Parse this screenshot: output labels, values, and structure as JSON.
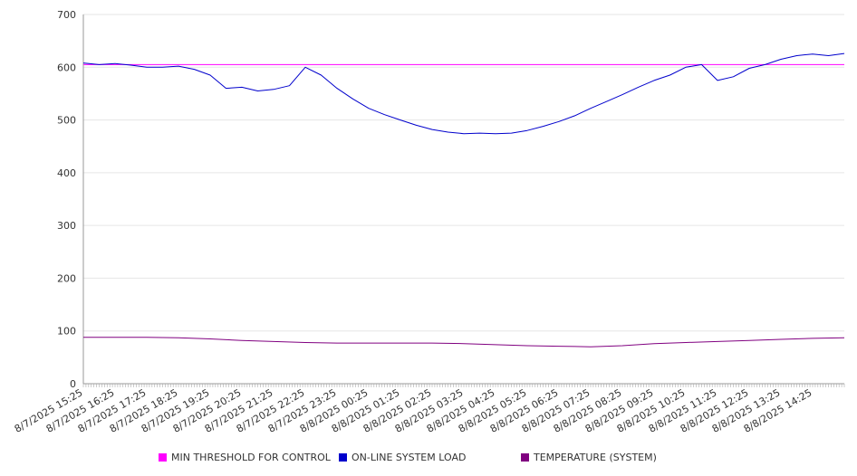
{
  "chart_data": {
    "type": "line",
    "ylim": [
      0,
      700
    ],
    "y_ticks": [
      0,
      100,
      200,
      300,
      400,
      500,
      600,
      700
    ],
    "y_tick_labels": [
      "0",
      "100",
      "200",
      "300",
      "400",
      "500",
      "600",
      "700"
    ],
    "x_range": [
      "8/7/2025 15:25",
      "8/8/2025 15:25"
    ],
    "x_tick_labels": [
      "8/7/2025 15:25",
      "8/7/2025 16:25",
      "8/7/2025 17:25",
      "8/7/2025 18:25",
      "8/7/2025 19:25",
      "8/7/2025 20:25",
      "8/7/2025 21:25",
      "8/7/2025 22:25",
      "8/7/2025 23:25",
      "8/8/2025 00:25",
      "8/8/2025 01:25",
      "8/8/2025 02:25",
      "8/8/2025 03:25",
      "8/8/2025 04:25",
      "8/8/2025 05:25",
      "8/8/2025 06:25",
      "8/8/2025 07:25",
      "8/8/2025 08:25",
      "8/8/2025 09:25",
      "8/8/2025 10:25",
      "8/8/2025 11:25",
      "8/8/2025 12:25",
      "8/8/2025 13:25",
      "8/8/2025 14:25"
    ],
    "grid": true,
    "legend_position": "bottom",
    "series": [
      {
        "name": "MIN THRESHOLD FOR CONTROL",
        "color": "#ff00ff",
        "x": [
          "8/7/2025 15:25",
          "8/8/2025 15:25"
        ],
        "values": [
          605,
          605
        ]
      },
      {
        "name": "ON-LINE SYSTEM LOAD",
        "color": "#0000cc",
        "x": [
          "8/7/2025 15:25",
          "8/7/2025 15:55",
          "8/7/2025 16:25",
          "8/7/2025 16:55",
          "8/7/2025 17:25",
          "8/7/2025 17:55",
          "8/7/2025 18:25",
          "8/7/2025 18:55",
          "8/7/2025 19:25",
          "8/7/2025 19:55",
          "8/7/2025 20:25",
          "8/7/2025 20:55",
          "8/7/2025 21:25",
          "8/7/2025 21:55",
          "8/7/2025 22:25",
          "8/7/2025 22:55",
          "8/7/2025 23:25",
          "8/7/2025 23:55",
          "8/8/2025 00:25",
          "8/8/2025 00:55",
          "8/8/2025 01:25",
          "8/8/2025 01:55",
          "8/8/2025 02:25",
          "8/8/2025 02:55",
          "8/8/2025 03:25",
          "8/8/2025 03:55",
          "8/8/2025 04:25",
          "8/8/2025 04:55",
          "8/8/2025 05:25",
          "8/8/2025 05:55",
          "8/8/2025 06:25",
          "8/8/2025 06:55",
          "8/8/2025 07:25",
          "8/8/2025 07:55",
          "8/8/2025 08:25",
          "8/8/2025 08:55",
          "8/8/2025 09:25",
          "8/8/2025 09:55",
          "8/8/2025 10:25",
          "8/8/2025 10:55",
          "8/8/2025 11:25",
          "8/8/2025 11:55",
          "8/8/2025 12:25",
          "8/8/2025 12:55",
          "8/8/2025 13:25",
          "8/8/2025 13:55",
          "8/8/2025 14:25",
          "8/8/2025 14:55",
          "8/8/2025 15:25"
        ],
        "values": [
          608,
          605,
          607,
          604,
          600,
          600,
          602,
          596,
          585,
          560,
          562,
          555,
          558,
          565,
          600,
          585,
          560,
          540,
          522,
          510,
          500,
          490,
          482,
          477,
          474,
          475,
          474,
          475,
          480,
          488,
          497,
          508,
          522,
          535,
          548,
          562,
          575,
          585,
          600,
          605,
          575,
          582,
          598,
          605,
          615,
          622,
          625,
          622,
          626
        ]
      },
      {
        "name": "TEMPERATURE (SYSTEM)",
        "color": "#800080",
        "x": [
          "8/7/2025 15:25",
          "8/7/2025 16:25",
          "8/7/2025 17:25",
          "8/7/2025 18:25",
          "8/7/2025 19:25",
          "8/7/2025 20:25",
          "8/7/2025 21:25",
          "8/7/2025 22:25",
          "8/7/2025 23:25",
          "8/8/2025 00:25",
          "8/8/2025 01:25",
          "8/8/2025 02:25",
          "8/8/2025 03:25",
          "8/8/2025 04:25",
          "8/8/2025 05:25",
          "8/8/2025 06:25",
          "8/8/2025 07:25",
          "8/8/2025 08:25",
          "8/8/2025 09:25",
          "8/8/2025 10:25",
          "8/8/2025 11:25",
          "8/8/2025 12:25",
          "8/8/2025 13:25",
          "8/8/2025 14:25",
          "8/8/2025 15:25"
        ],
        "values": [
          88,
          88,
          88,
          87,
          85,
          82,
          80,
          78,
          77,
          77,
          77,
          77,
          76,
          74,
          72,
          71,
          70,
          72,
          76,
          78,
          80,
          82,
          84,
          86,
          87
        ]
      }
    ]
  }
}
